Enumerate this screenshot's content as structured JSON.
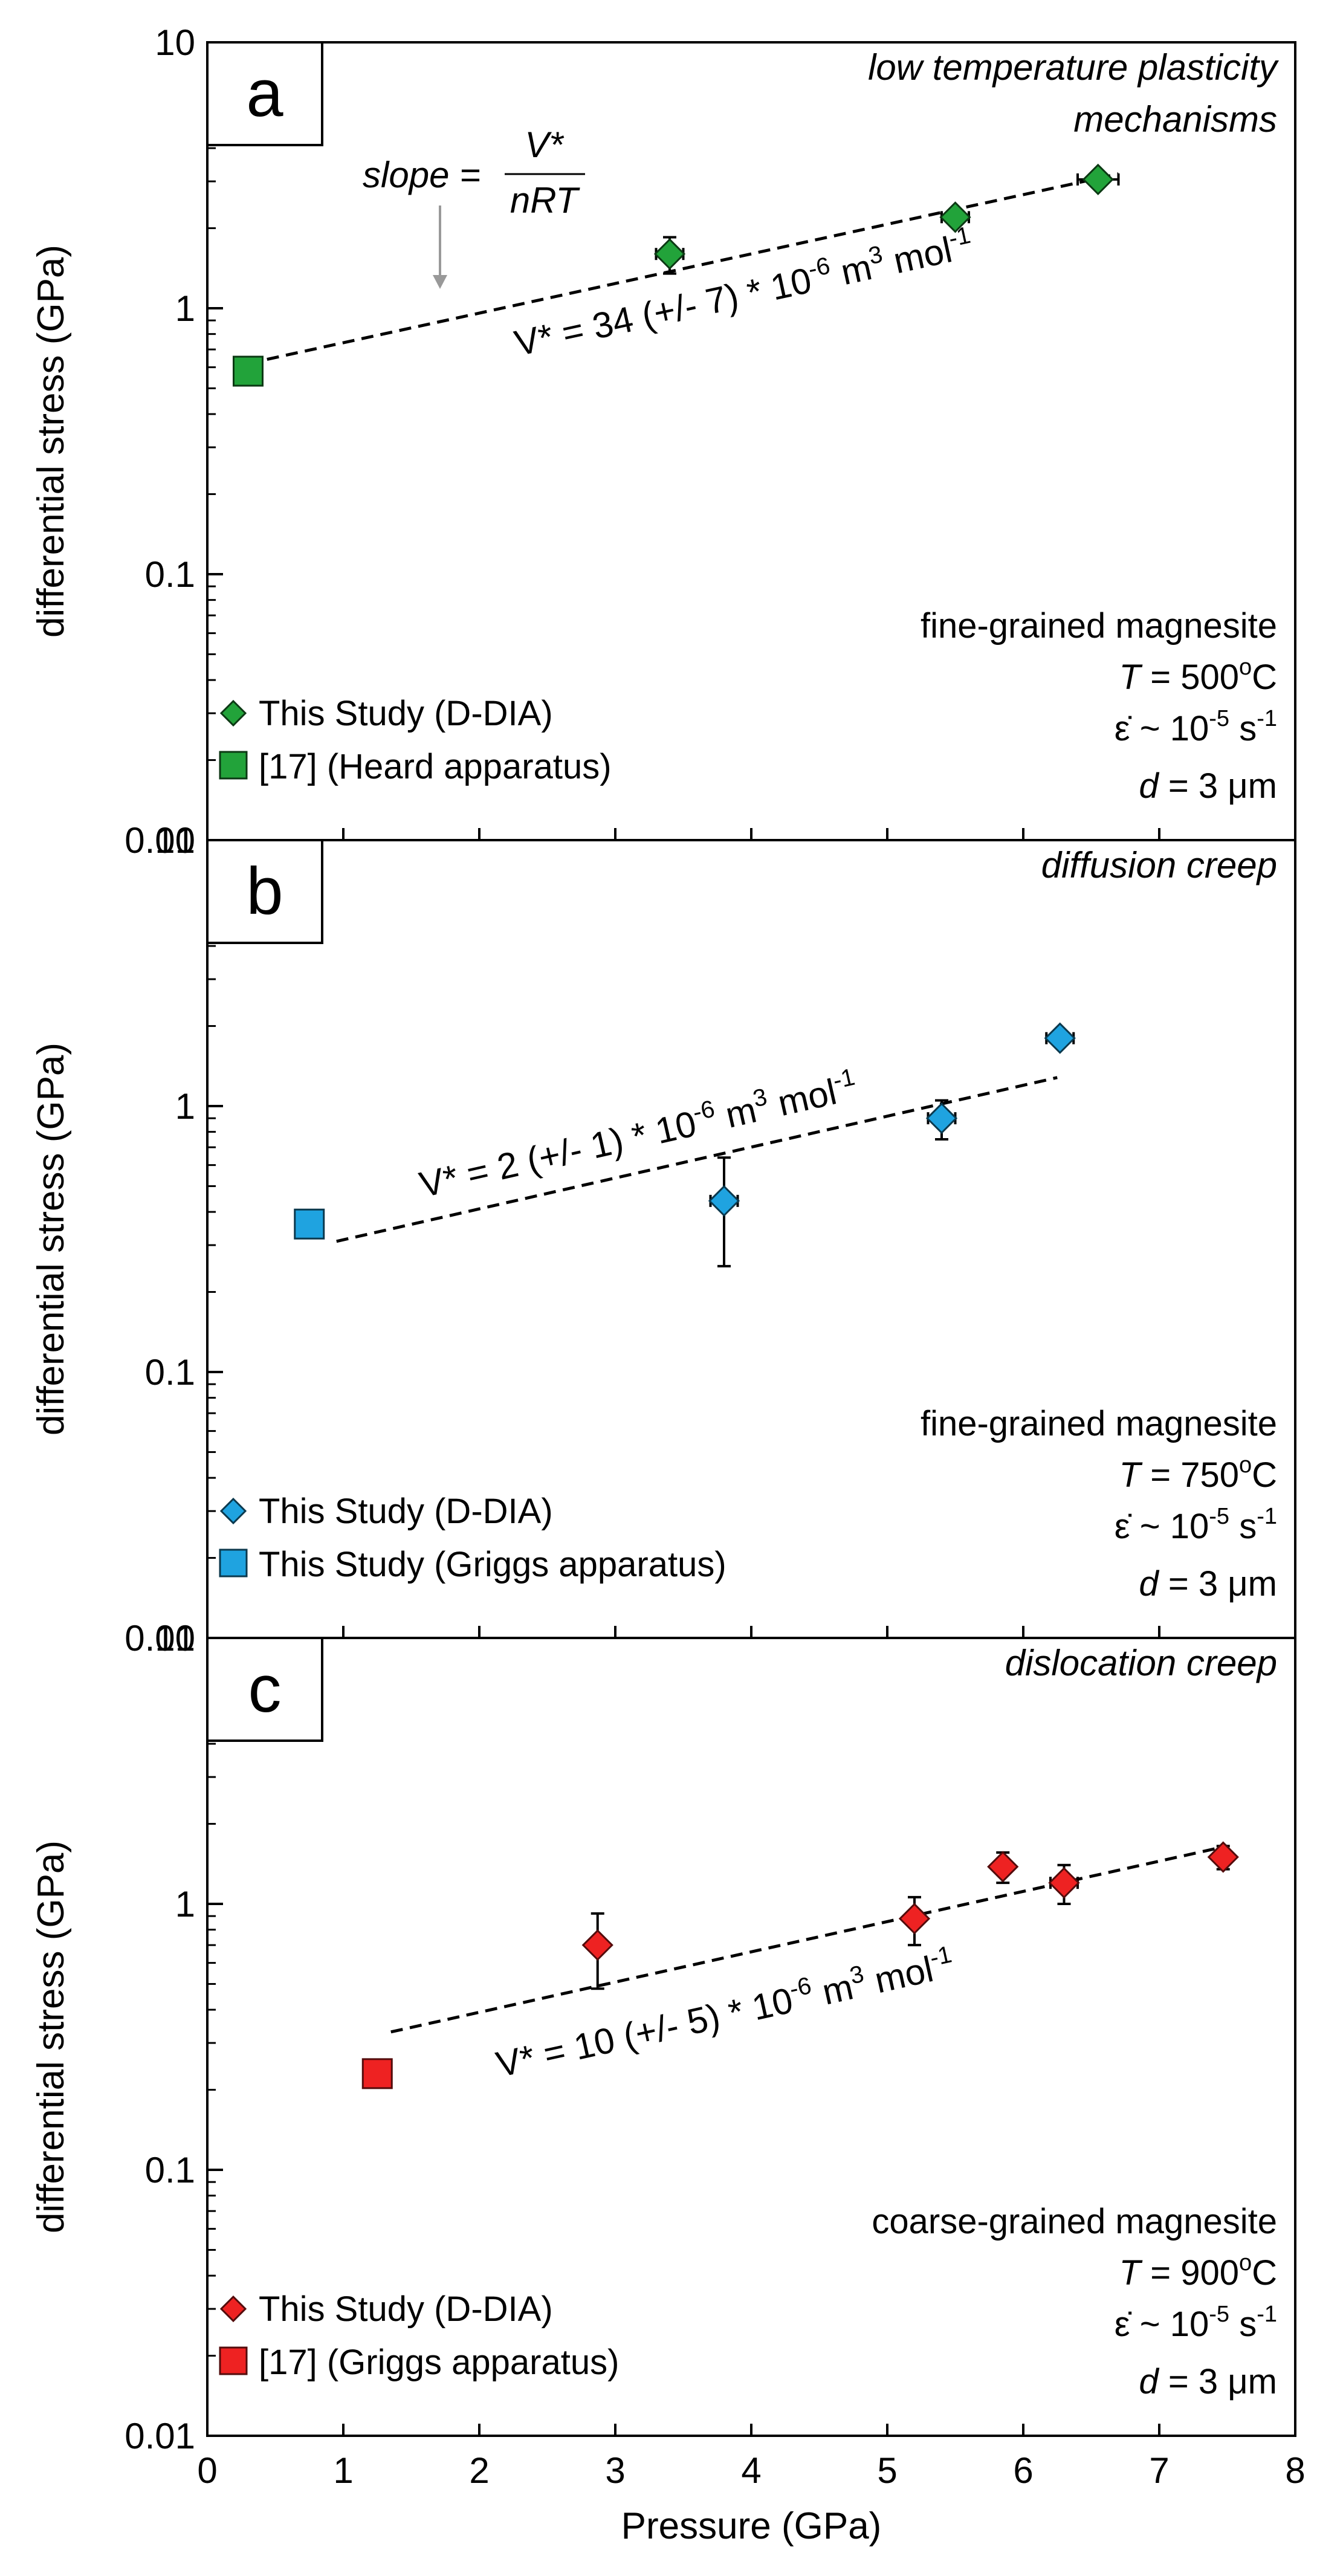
{
  "figure": {
    "xlabel": "Pressure (GPa)",
    "x_ticks": [
      "0",
      "1",
      "2",
      "3",
      "4",
      "5",
      "6",
      "7",
      "8"
    ],
    "y_ticks": [
      "0.01",
      "0.1",
      "1",
      "10"
    ]
  },
  "chart_data": [
    {
      "type": "scatter",
      "panel_label": "a",
      "ylabel": "differential stress (GPa)",
      "xlim": [
        0,
        8
      ],
      "ylim": [
        0.01,
        10
      ],
      "y_scale": "log",
      "mechanism": "low temperature plasticity mechanisms",
      "mechanism_lines": [
        "low temperature plasticity",
        "mechanisms"
      ],
      "fit_label": {
        "prefix": "V* = 34 (+/- 7) * 10",
        "exp1": "-6",
        "mid": " m",
        "exp2": "3",
        "suffix": " mol",
        "exp3": "-1"
      },
      "slope_note": {
        "lhs": "slope = ",
        "num": "V*",
        "den": "nRT"
      },
      "conditions": {
        "material": "fine-grained magnesite",
        "temperature": {
          "sym": "T",
          "rest": " = 500",
          "unit_sup": "o",
          "unit": "C"
        },
        "strain_rate": {
          "sym": "ε̇",
          "rest": " ~ 10",
          "exp": "-5",
          "unit": " s",
          "unit_exp": "-1"
        },
        "grain_size": {
          "sym": "d",
          "rest": " = 3 μm"
        }
      },
      "legend": [
        {
          "marker": "diamond",
          "label": "This Study (D-DIA)"
        },
        {
          "marker": "square",
          "label": "[17] (Heard apparatus)"
        }
      ],
      "color": "#22a33a",
      "fit_line": {
        "x": [
          0.3,
          6.7
        ],
        "y": [
          0.62,
          3.2
        ]
      },
      "series": [
        {
          "name": "This Study (D-DIA)",
          "marker": "diamond",
          "points": [
            {
              "x": 3.4,
              "y": 1.6,
              "xerr": 0.1,
              "yerr": 0.25
            },
            {
              "x": 5.5,
              "y": 2.2,
              "xerr": 0.1,
              "yerr": 0.12
            },
            {
              "x": 6.55,
              "y": 3.05,
              "xerr": 0.15,
              "yerr": 0.15
            }
          ]
        },
        {
          "name": "[17] (Heard apparatus)",
          "marker": "square",
          "points": [
            {
              "x": 0.3,
              "y": 0.58
            }
          ]
        }
      ]
    },
    {
      "type": "scatter",
      "panel_label": "b",
      "ylabel": "differential stress (GPa)",
      "xlim": [
        0,
        8
      ],
      "ylim": [
        0.01,
        10
      ],
      "y_scale": "log",
      "mechanism": "diffusion creep",
      "fit_label": {
        "prefix": "V* = 2 (+/- 1) * 10",
        "exp1": "-6",
        "mid": " m",
        "exp2": "3",
        "suffix": " mol",
        "exp3": "-1"
      },
      "conditions": {
        "material": "fine-grained magnesite",
        "temperature": {
          "sym": "T",
          "rest": " = 750",
          "unit_sup": "o",
          "unit": "C"
        },
        "strain_rate": {
          "sym": "ε̇",
          "rest": " ~ 10",
          "exp": "-5",
          "unit": " s",
          "unit_exp": "-1"
        },
        "grain_size": {
          "sym": "d",
          "rest": " = 3 μm"
        }
      },
      "legend": [
        {
          "marker": "diamond",
          "label": "This Study (D-DIA)"
        },
        {
          "marker": "square",
          "label": "This Study (Griggs apparatus)"
        }
      ],
      "color": "#1fa3e0",
      "fit_line": {
        "x": [
          0.95,
          6.25
        ],
        "y": [
          0.31,
          1.28
        ]
      },
      "series": [
        {
          "name": "This Study (D-DIA)",
          "marker": "diamond",
          "points": [
            {
              "x": 3.8,
              "y": 0.44,
              "xerr": 0.1,
              "yerr_low": 0.19,
              "yerr_high": 0.2
            },
            {
              "x": 5.4,
              "y": 0.9,
              "xerr": 0.1,
              "yerr": 0.15
            },
            {
              "x": 6.27,
              "y": 1.8,
              "xerr": 0.1,
              "yerr": 0.1
            }
          ]
        },
        {
          "name": "This Study (Griggs apparatus)",
          "marker": "square",
          "points": [
            {
              "x": 0.75,
              "y": 0.36
            }
          ]
        }
      ]
    },
    {
      "type": "scatter",
      "panel_label": "c",
      "ylabel": "differential stress (GPa)",
      "xlim": [
        0,
        8
      ],
      "ylim": [
        0.01,
        10
      ],
      "y_scale": "log",
      "mechanism": "dislocation creep",
      "fit_label": {
        "prefix": "V* = 10 (+/- 5) * 10",
        "exp1": "-6",
        "mid": " m",
        "exp2": "3",
        "suffix": " mol",
        "exp3": "-1"
      },
      "conditions": {
        "material": "coarse-grained magnesite",
        "temperature": {
          "sym": "T",
          "rest": " = 900",
          "unit_sup": "o",
          "unit": "C"
        },
        "strain_rate": {
          "sym": "ε̇",
          "rest": " ~ 10",
          "exp": "-5",
          "unit": " s",
          "unit_exp": "-1"
        },
        "grain_size": {
          "sym": "d",
          "rest": " = 3 μm"
        }
      },
      "legend": [
        {
          "marker": "diamond",
          "label": "This Study (D-DIA)"
        },
        {
          "marker": "square",
          "label": "[17] (Griggs apparatus)"
        }
      ],
      "color": "#ee2222",
      "fit_line": {
        "x": [
          1.35,
          7.5
        ],
        "y": [
          0.33,
          1.65
        ]
      },
      "series": [
        {
          "name": "This Study (D-DIA)",
          "marker": "diamond",
          "points": [
            {
              "x": 2.87,
              "y": 0.7,
              "xerr": 0.05,
              "yerr": 0.22
            },
            {
              "x": 5.2,
              "y": 0.88,
              "xerr": 0.05,
              "yerr": 0.18
            },
            {
              "x": 5.85,
              "y": 1.38,
              "xerr": 0.05,
              "yerr": 0.18
            },
            {
              "x": 6.3,
              "y": 1.2,
              "xerr": 0.1,
              "yerr": 0.2
            },
            {
              "x": 7.47,
              "y": 1.5,
              "xerr": 0.05,
              "yerr": 0.15
            }
          ]
        },
        {
          "name": "[17] (Griggs apparatus)",
          "marker": "square",
          "points": [
            {
              "x": 1.25,
              "y": 0.23
            }
          ]
        }
      ]
    }
  ]
}
